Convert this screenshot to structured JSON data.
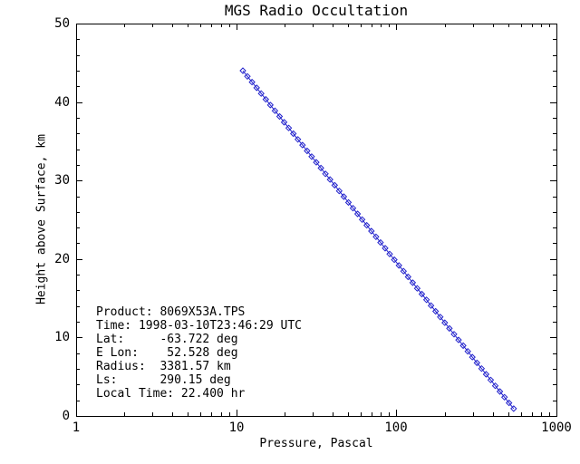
{
  "title": "MGS Radio Occultation",
  "colors": {
    "background": "#ffffff",
    "axis": "#000000",
    "text": "#000000",
    "profile_line": "#2222cc"
  },
  "chart_data": {
    "type": "line",
    "title": "MGS Radio Occultation",
    "xlabel": "Pressure, Pascal",
    "ylabel": "Height above Surface, km",
    "x_scale": "log",
    "xlim": [
      1,
      1000
    ],
    "ylim": [
      0,
      50
    ],
    "x_ticks": [
      1,
      10,
      100,
      1000
    ],
    "x_tick_labels": [
      "1",
      "10",
      "100",
      "1000"
    ],
    "y_ticks": [
      0,
      10,
      20,
      30,
      40,
      50
    ],
    "y_tick_labels": [
      "0",
      "10",
      "20",
      "30",
      "40",
      "50"
    ],
    "y_minor_step": 2,
    "grid": false,
    "legend": "none",
    "marker": "open-diamond",
    "series": [
      {
        "name": "radio-occultation-profile",
        "pressure_pa": [
          11.0,
          11.75,
          12.55,
          13.41,
          14.32,
          15.3,
          16.34,
          17.46,
          18.65,
          19.92,
          21.28,
          22.73,
          24.28,
          25.94,
          27.71,
          29.6,
          31.62,
          33.78,
          36.08,
          38.55,
          41.18,
          43.99,
          46.99,
          50.2,
          53.62,
          57.28,
          61.19,
          65.37,
          69.83,
          74.6,
          79.69,
          85.13,
          90.94,
          97.14,
          103.8,
          110.9,
          118.4,
          126.5,
          135.1,
          144.4,
          154.2,
          164.7,
          176.0,
          188.0,
          200.8,
          214.5,
          229.2,
          244.8,
          261.5,
          279.4,
          298.4,
          318.8,
          340.6,
          363.8,
          388.6,
          415.1,
          443.5,
          473.7,
          506.1,
          540.6
        ],
        "height_km": [
          44.0,
          43.27,
          42.54,
          41.81,
          41.08,
          40.35,
          39.62,
          38.89,
          38.16,
          37.43,
          36.7,
          35.97,
          35.24,
          34.51,
          33.78,
          33.05,
          32.32,
          31.59,
          30.86,
          30.13,
          29.4,
          28.67,
          27.94,
          27.21,
          26.48,
          25.75,
          25.02,
          24.29,
          23.56,
          22.83,
          22.1,
          21.37,
          20.64,
          19.91,
          19.18,
          18.45,
          17.72,
          16.99,
          16.26,
          15.53,
          14.8,
          14.07,
          13.34,
          12.61,
          11.88,
          11.15,
          10.42,
          9.69,
          8.96,
          8.23,
          7.5,
          6.77,
          6.04,
          5.31,
          4.58,
          3.85,
          3.12,
          2.39,
          1.66,
          0.93
        ]
      }
    ]
  },
  "annotation": {
    "lines": [
      "Product: 8069X53A.TPS",
      "Time: 1998-03-10T23:46:29 UTC",
      "Lat:     -63.722 deg",
      "E Lon:    52.528 deg",
      "Radius:  3381.57 km",
      "Ls:      290.15 deg",
      "Local Time: 22.400 hr"
    ]
  }
}
